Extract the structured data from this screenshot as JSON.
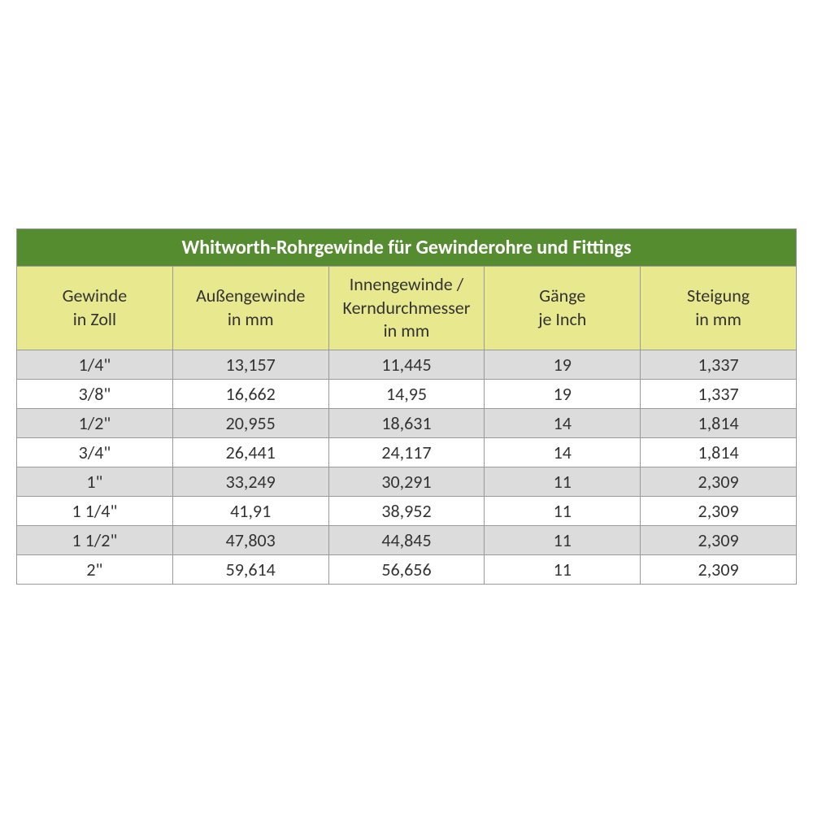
{
  "table": {
    "type": "table",
    "title": "Whitworth-Rohrgewinde für Gewinderohre und Fittings",
    "title_bg_color": "#548c2f",
    "title_text_color": "#ffffff",
    "title_fontsize": 24,
    "header_bg_color": "#e8e88f",
    "header_text_color": "#333333",
    "header_fontsize": 22,
    "row_odd_bg_color": "#dcdcdc",
    "row_even_bg_color": "#ffffff",
    "border_color": "#999999",
    "cell_fontsize": 22,
    "columns": [
      {
        "line1": "Gewinde",
        "line2": "in Zoll",
        "width_pct": 14
      },
      {
        "line1": "Außengewinde",
        "line2": "in mm",
        "width_pct": 22
      },
      {
        "line1": "Innengewinde /",
        "line2": "Kerndurchmesser",
        "line3": "in mm",
        "width_pct": 28
      },
      {
        "line1": "Gänge",
        "line2": "je Inch",
        "width_pct": 17
      },
      {
        "line1": "Steigung",
        "line2": "in mm",
        "width_pct": 19
      }
    ],
    "rows": [
      [
        "1/4\"",
        "13,157",
        "11,445",
        "19",
        "1,337"
      ],
      [
        "3/8\"",
        "16,662",
        "14,95",
        "19",
        "1,337"
      ],
      [
        "1/2\"",
        "20,955",
        "18,631",
        "14",
        "1,814"
      ],
      [
        "3/4\"",
        "26,441",
        "24,117",
        "14",
        "1,814"
      ],
      [
        "1\"",
        "33,249",
        "30,291",
        "11",
        "2,309"
      ],
      [
        "1 1/4\"",
        "41,91",
        "38,952",
        "11",
        "2,309"
      ],
      [
        "1 1/2\"",
        "47,803",
        "44,845",
        "11",
        "2,309"
      ],
      [
        "2\"",
        "59,614",
        "56,656",
        "11",
        "2,309"
      ]
    ]
  }
}
